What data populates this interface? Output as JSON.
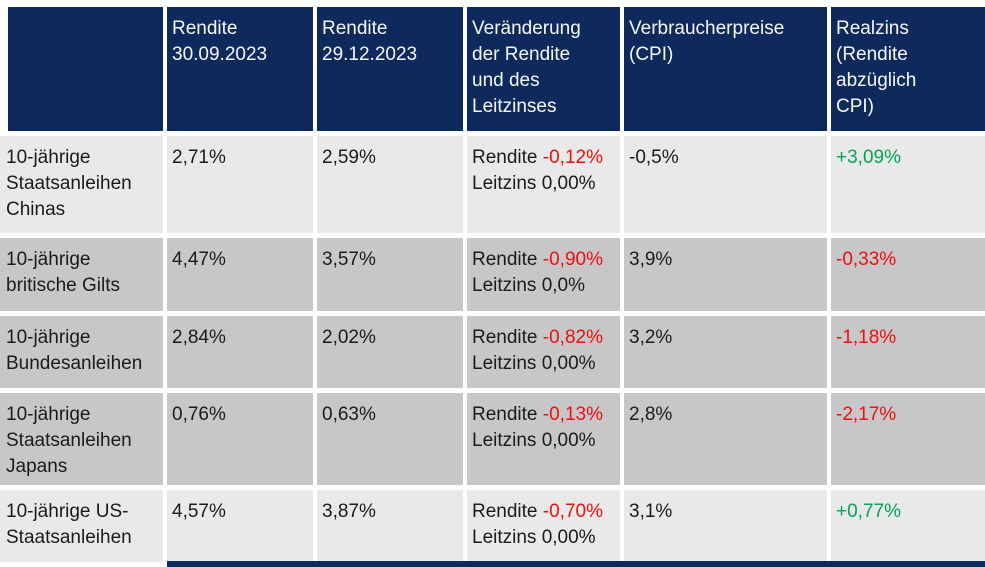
{
  "colors": {
    "page_bg": "#ffffff",
    "header_bg": "#0e2a5c",
    "header_text": "#f7f7f7",
    "row_light": "#e9e9e9",
    "row_medium": "#c7c7ca",
    "body_text": "#1b1b1b",
    "negative_red": "#f00e0e",
    "positive_green": "#00a651"
  },
  "chart_data": {
    "type": "table",
    "title": "",
    "columns": [
      {
        "key": "asset",
        "label": ""
      },
      {
        "key": "rendite-30-09-2023",
        "label": "Rendite\n30.09.2023"
      },
      {
        "key": "rendite-29-12-2023",
        "label": "Rendite\n29.12.2023"
      },
      {
        "key": "veraenderung-rendite-leitzins",
        "label": "Veränderung\nder Rendite\nund des\nLeitzinses"
      },
      {
        "key": "verbraucherpreise-cpi",
        "label": "Verbraucherpreise\n(CPI)"
      },
      {
        "key": "realzins",
        "label": "Realzins\n(Rendite\nabzüglich\nCPI)"
      }
    ],
    "rows": [
      {
        "label": "10-jährige\nStaatsanleihen\nChinas",
        "shade": "light",
        "yield_sep": "2,71%",
        "yield_dec": "2,59%",
        "change": {
          "label": "Rendite",
          "value": "-0,12%",
          "policy": "Leitzins 0,00%"
        },
        "cpi": "-0,5%",
        "realzins": {
          "value": "+3,09%",
          "trend": "positive"
        }
      },
      {
        "label": "10-jährige\nbritische Gilts",
        "shade": "medium",
        "yield_sep": "4,47%",
        "yield_dec": "3,57%",
        "change": {
          "label": "Rendite",
          "value": "-0,90%",
          "policy": "Leitzins 0,0%"
        },
        "cpi": "3,9%",
        "realzins": {
          "value": "-0,33%",
          "trend": "negative"
        }
      },
      {
        "label": "10-jährige\nBundesanleihen",
        "shade": "medium",
        "yield_sep": "2,84%",
        "yield_dec": "2,02%",
        "change": {
          "label": "Rendite",
          "value": "-0,82%",
          "policy": "Leitzins 0,00%"
        },
        "cpi": "3,2%",
        "realzins": {
          "value": "-1,18%",
          "trend": "negative"
        }
      },
      {
        "label": "10-jährige\nStaatsanleihen\nJapans",
        "shade": "medium",
        "yield_sep": "0,76%",
        "yield_dec": "0,63%",
        "change": {
          "label": "Rendite",
          "value": "-0,13%",
          "policy": "Leitzins 0,00%"
        },
        "cpi": "2,8%",
        "realzins": {
          "value": "-2,17%",
          "trend": "negative"
        }
      },
      {
        "label": "10-jährige US-\nStaatsanleihen",
        "shade": "light",
        "yield_sep": "4,57%",
        "yield_dec": "3,87%",
        "change": {
          "label": "Rendite",
          "value": "-0,70%",
          "policy": "Leitzins 0,00%"
        },
        "cpi": "3,1%",
        "realzins": {
          "value": "+0,77%",
          "trend": "positive"
        }
      }
    ]
  }
}
